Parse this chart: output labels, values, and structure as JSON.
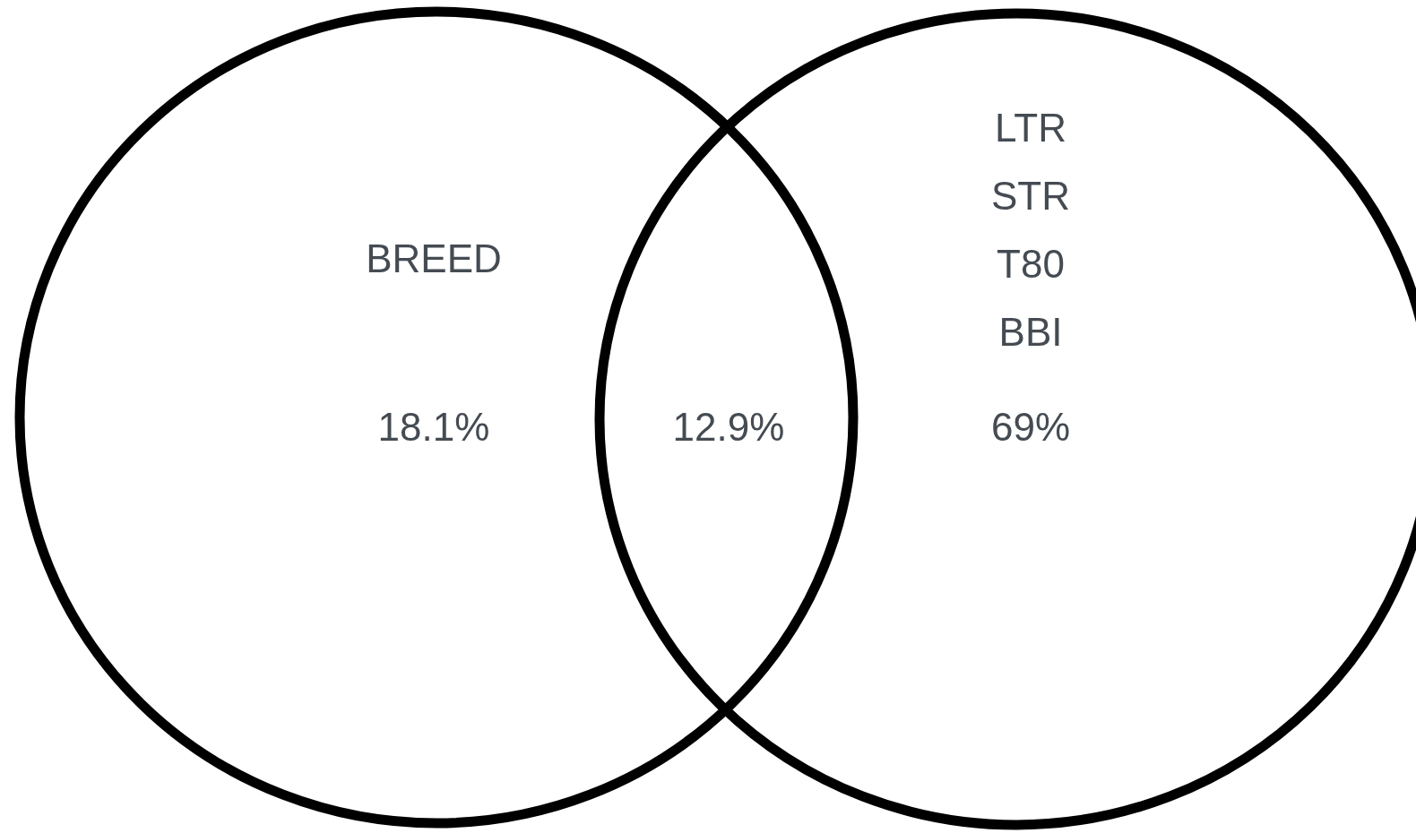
{
  "chart_data": {
    "type": "other",
    "categories": [
      "BREED",
      null,
      "LTR\nSTR\nT80\nBBI"
    ],
    "values": [
      18.1,
      12.9,
      69
    ],
    "value_labels": [
      "18.1%",
      "12.9%",
      "69%"
    ]
  }
}
